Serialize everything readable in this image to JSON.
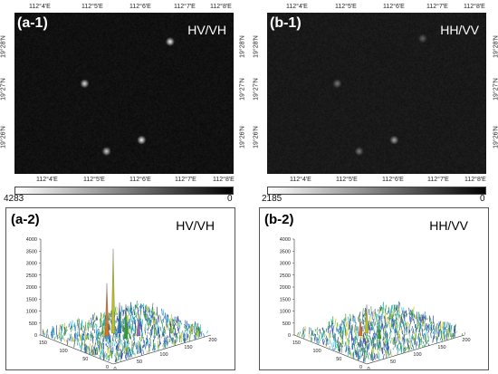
{
  "panels": {
    "a1": {
      "tag": "(a-1)",
      "pol": "HV/VH",
      "lon_ticks": [
        "112°4′E",
        "112°5′E",
        "112°6′E",
        "112°7′E",
        "112°8′E"
      ],
      "lat_ticks": [
        "19°28′N",
        "19°27′N",
        "19°26′N"
      ],
      "colorbar": {
        "max": "4283",
        "min": "0"
      },
      "targets": [
        [
          0.71,
          0.18,
          1.0
        ],
        [
          0.32,
          0.44,
          0.9
        ],
        [
          0.58,
          0.79,
          1.0
        ],
        [
          0.42,
          0.86,
          0.85
        ]
      ]
    },
    "b1": {
      "tag": "(b-1)",
      "pol": "HH/VV",
      "lon_ticks": [
        "112°4′E",
        "112°5′E",
        "112°6′E",
        "112°7′E",
        "112°8′E"
      ],
      "lat_ticks": [
        "19°28′N",
        "19°27′N",
        "19°26′N"
      ],
      "colorbar": {
        "max": "2185",
        "min": "0"
      },
      "targets": [
        [
          0.71,
          0.16,
          0.35
        ],
        [
          0.32,
          0.44,
          0.45
        ],
        [
          0.58,
          0.79,
          0.65
        ],
        [
          0.42,
          0.86,
          0.45
        ]
      ]
    },
    "a2": {
      "tag": "(a-2)",
      "pol": "HV/VH",
      "z_ticks": [
        "0",
        "500",
        "1000",
        "1500",
        "2000",
        "2500",
        "3000",
        "3500",
        "4000"
      ],
      "y_ticks": [
        "0",
        "50",
        "100",
        "150"
      ],
      "x_ticks": [
        "0",
        "50",
        "100",
        "150",
        "200"
      ],
      "spikes": [
        0.88,
        0.55,
        0.36,
        0.32,
        0.22
      ]
    },
    "b2": {
      "tag": "(b-2)",
      "pol": "HH/VV",
      "z_ticks": [
        "0",
        "500",
        "1000",
        "1500",
        "2000",
        "2500",
        "3000",
        "3500",
        "4000"
      ],
      "y_ticks": [
        "0",
        "50",
        "100",
        "150"
      ],
      "x_ticks": [
        "0",
        "50",
        "100",
        "150",
        "200"
      ],
      "spikes": [
        0.3,
        0.18,
        0.14
      ]
    }
  }
}
